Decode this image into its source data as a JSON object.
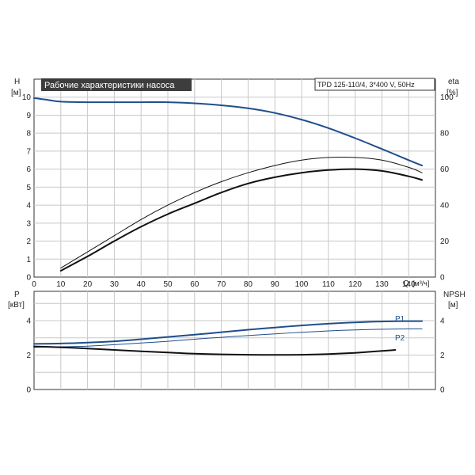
{
  "chart_data": [
    {
      "type": "line",
      "title": "Рабочие характеристики насоса",
      "model": "TPD 125-110/4, 3*400 V, 50Hz",
      "xlabel": "Q [м³/ч]",
      "x_axis_label": "Q",
      "x_unit": "[м³/ч]",
      "left_axis": {
        "label": "H",
        "unit": "[м]",
        "range": [
          0,
          11
        ],
        "ticks": [
          0,
          1,
          2,
          3,
          4,
          5,
          6,
          7,
          8,
          9,
          10
        ]
      },
      "right_axis": {
        "label": "eta",
        "unit": "[%]",
        "range": [
          0,
          110
        ],
        "ticks": [
          0,
          20,
          40,
          60,
          80,
          100
        ]
      },
      "xlim": [
        0,
        150
      ],
      "xticks": [
        0,
        10,
        20,
        30,
        40,
        50,
        60,
        70,
        80,
        90,
        100,
        110,
        120,
        130,
        140
      ],
      "grid": true,
      "series": [
        {
          "axis": "left",
          "color": "#1f4e8c",
          "width": 2,
          "points": [
            [
              0,
              9.95
            ],
            [
              5,
              9.85
            ],
            [
              10,
              9.75
            ],
            [
              20,
              9.72
            ],
            [
              30,
              9.72
            ],
            [
              40,
              9.72
            ],
            [
              50,
              9.72
            ],
            [
              60,
              9.66
            ],
            [
              70,
              9.55
            ],
            [
              80,
              9.38
            ],
            [
              90,
              9.12
            ],
            [
              100,
              8.75
            ],
            [
              110,
              8.28
            ],
            [
              120,
              7.72
            ],
            [
              130,
              7.12
            ],
            [
              140,
              6.5
            ],
            [
              145,
              6.2
            ]
          ]
        },
        {
          "axis": "right",
          "color": "#111111",
          "width": 1,
          "points": [
            [
              10,
              5
            ],
            [
              20,
              14
            ],
            [
              30,
              23
            ],
            [
              40,
              32
            ],
            [
              50,
              40
            ],
            [
              60,
              47
            ],
            [
              70,
              53
            ],
            [
              80,
              58
            ],
            [
              90,
              62
            ],
            [
              100,
              65
            ],
            [
              110,
              66.5
            ],
            [
              120,
              66.5
            ],
            [
              130,
              65
            ],
            [
              140,
              61
            ],
            [
              145,
              58
            ]
          ]
        },
        {
          "axis": "right",
          "color": "#111111",
          "width": 2,
          "points": [
            [
              10,
              3.5
            ],
            [
              20,
              11.5
            ],
            [
              30,
              20
            ],
            [
              40,
              28
            ],
            [
              50,
              35
            ],
            [
              60,
              41
            ],
            [
              70,
              47
            ],
            [
              80,
              52
            ],
            [
              90,
              55.5
            ],
            [
              100,
              58
            ],
            [
              110,
              59.5
            ],
            [
              120,
              60
            ],
            [
              130,
              59
            ],
            [
              140,
              56
            ],
            [
              145,
              54
            ]
          ]
        }
      ]
    },
    {
      "type": "line",
      "left_axis": {
        "label": "P",
        "unit": "[кВт]",
        "range": [
          0,
          5.7
        ],
        "ticks": [
          0,
          2,
          4
        ]
      },
      "right_axis": {
        "label": "NPSH",
        "unit": "[м]",
        "range": [
          0,
          5.7
        ],
        "ticks": [
          0,
          2,
          4
        ]
      },
      "xlim": [
        0,
        150
      ],
      "grid": true,
      "series": [
        {
          "name": "P1",
          "axis": "left",
          "color": "#1f4e8c",
          "width": 2,
          "points": [
            [
              0,
              2.65
            ],
            [
              10,
              2.67
            ],
            [
              20,
              2.72
            ],
            [
              30,
              2.8
            ],
            [
              40,
              2.92
            ],
            [
              50,
              3.05
            ],
            [
              60,
              3.18
            ],
            [
              70,
              3.33
            ],
            [
              80,
              3.47
            ],
            [
              90,
              3.6
            ],
            [
              100,
              3.72
            ],
            [
              110,
              3.82
            ],
            [
              120,
              3.9
            ],
            [
              130,
              3.95
            ],
            [
              140,
              3.97
            ],
            [
              145,
              3.97
            ]
          ]
        },
        {
          "name": "P2",
          "axis": "left",
          "color": "#1f4e8c",
          "width": 1,
          "points": [
            [
              0,
              2.45
            ],
            [
              10,
              2.48
            ],
            [
              20,
              2.52
            ],
            [
              30,
              2.6
            ],
            [
              40,
              2.7
            ],
            [
              50,
              2.8
            ],
            [
              60,
              2.92
            ],
            [
              70,
              3.03
            ],
            [
              80,
              3.13
            ],
            [
              90,
              3.23
            ],
            [
              100,
              3.32
            ],
            [
              110,
              3.4
            ],
            [
              120,
              3.46
            ],
            [
              130,
              3.5
            ],
            [
              140,
              3.52
            ],
            [
              145,
              3.52
            ]
          ]
        },
        {
          "axis": "right",
          "color": "#111111",
          "width": 2,
          "points": [
            [
              0,
              2.5
            ],
            [
              10,
              2.45
            ],
            [
              20,
              2.38
            ],
            [
              30,
              2.3
            ],
            [
              40,
              2.22
            ],
            [
              50,
              2.15
            ],
            [
              60,
              2.08
            ],
            [
              70,
              2.04
            ],
            [
              80,
              2.02
            ],
            [
              90,
              2.01
            ],
            [
              100,
              2.02
            ],
            [
              110,
              2.06
            ],
            [
              120,
              2.13
            ],
            [
              130,
              2.24
            ],
            [
              135,
              2.3
            ]
          ]
        }
      ]
    }
  ]
}
